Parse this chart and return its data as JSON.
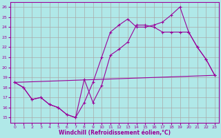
{
  "xlabel": "Windchill (Refroidissement éolien,°C)",
  "bg_color": "#b0e8e8",
  "line_color": "#990099",
  "grid_color": "#aaaaaa",
  "xlim": [
    -0.5,
    23.5
  ],
  "ylim": [
    14.5,
    26.5
  ],
  "yticks": [
    15,
    16,
    17,
    18,
    19,
    20,
    21,
    22,
    23,
    24,
    25,
    26
  ],
  "xticks": [
    0,
    1,
    2,
    3,
    4,
    5,
    6,
    7,
    8,
    9,
    10,
    11,
    12,
    13,
    14,
    15,
    16,
    17,
    18,
    19,
    20,
    21,
    22,
    23
  ],
  "line1_x": [
    0,
    1,
    2,
    3,
    4,
    5,
    6,
    7,
    8,
    9,
    10,
    11,
    12,
    13,
    14,
    15,
    16,
    17,
    18,
    19,
    20,
    21,
    22,
    23
  ],
  "line1_y": [
    18.5,
    18.0,
    16.8,
    17.0,
    16.3,
    16.0,
    15.3,
    15.0,
    16.5,
    18.5,
    21.0,
    23.5,
    24.2,
    24.8,
    24.0,
    24.0,
    24.2,
    24.5,
    25.2,
    26.0,
    23.5,
    22.0,
    20.8,
    19.2
  ],
  "line2_x": [
    0,
    1,
    2,
    3,
    4,
    5,
    6,
    7,
    8,
    9,
    10,
    11,
    12,
    13,
    14,
    15,
    16,
    17,
    18,
    19,
    20,
    21,
    22,
    23
  ],
  "line2_y": [
    18.5,
    18.0,
    16.8,
    17.0,
    16.3,
    16.0,
    15.3,
    15.0,
    18.8,
    16.5,
    18.2,
    21.2,
    21.8,
    22.5,
    24.2,
    24.2,
    24.0,
    23.5,
    23.5,
    23.5,
    23.5,
    22.0,
    20.8,
    19.2
  ],
  "line3_x": [
    0,
    23
  ],
  "line3_y": [
    18.5,
    19.2
  ]
}
